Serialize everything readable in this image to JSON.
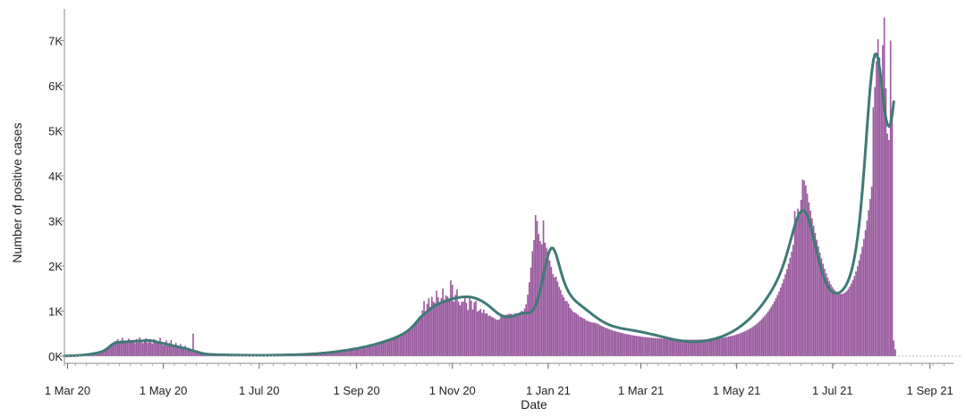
{
  "chart_data": {
    "type": "bar",
    "xlabel": "Date",
    "ylabel": "Number of positive cases",
    "xlim": [
      "2020-02-28",
      "2021-09-16"
    ],
    "ylim": [
      0,
      7700
    ],
    "grid": false,
    "x_ticks": [
      {
        "date": "2020-03-01",
        "label": "1 Mar 20"
      },
      {
        "date": "2020-05-01",
        "label": "1 May 20"
      },
      {
        "date": "2020-07-01",
        "label": "1 Jul 20"
      },
      {
        "date": "2020-09-01",
        "label": "1 Sep 20"
      },
      {
        "date": "2020-11-01",
        "label": "1 Nov 20"
      },
      {
        "date": "2021-01-01",
        "label": "1 Jan 21"
      },
      {
        "date": "2021-03-01",
        "label": "1 Mar 21"
      },
      {
        "date": "2021-05-01",
        "label": "1 May 21"
      },
      {
        "date": "2021-07-01",
        "label": "1 Jul 21"
      },
      {
        "date": "2021-09-01",
        "label": "1 Sep 21"
      }
    ],
    "y_ticks": [
      {
        "value": 0,
        "label": "0K"
      },
      {
        "value": 1000,
        "label": "1K"
      },
      {
        "value": 2000,
        "label": "2K"
      },
      {
        "value": 3000,
        "label": "3K"
      },
      {
        "value": 4000,
        "label": "4K"
      },
      {
        "value": 5000,
        "label": "5K"
      },
      {
        "value": 6000,
        "label": "6K"
      },
      {
        "value": 7000,
        "label": "7K"
      }
    ],
    "daily_cases": {
      "start_date": "2020-02-28",
      "values": [
        5,
        6,
        7,
        8,
        9,
        10,
        12,
        14,
        16,
        18,
        20,
        23,
        26,
        30,
        34,
        38,
        43,
        48,
        54,
        60,
        67,
        74,
        82,
        90,
        105,
        120,
        140,
        160,
        190,
        220,
        260,
        300,
        330,
        340,
        380,
        290,
        350,
        410,
        300,
        330,
        330,
        390,
        300,
        340,
        350,
        290,
        380,
        300,
        420,
        360,
        290,
        320,
        400,
        300,
        350,
        310,
        280,
        380,
        360,
        290,
        340,
        410,
        300,
        240,
        310,
        350,
        270,
        290,
        360,
        230,
        240,
        300,
        230,
        200,
        270,
        210,
        170,
        230,
        180,
        190,
        150,
        140,
        500,
        130,
        110,
        90,
        60,
        80,
        70,
        40,
        55,
        45,
        40,
        42,
        38,
        36,
        34,
        33,
        32,
        31,
        30,
        30,
        29,
        28,
        28,
        27,
        26,
        26,
        25,
        25,
        24,
        24,
        23,
        23,
        22,
        22,
        22,
        21,
        21,
        21,
        20,
        20,
        20,
        20,
        20,
        20,
        20,
        21,
        21,
        21,
        22,
        22,
        22,
        23,
        23,
        24,
        24,
        25,
        26,
        26,
        27,
        28,
        29,
        30,
        30,
        31,
        32,
        33,
        34,
        35,
        36,
        38,
        40,
        41,
        43,
        45,
        47,
        49,
        51,
        53,
        55,
        58,
        61,
        63,
        66,
        69,
        72,
        76,
        79,
        83,
        87,
        91,
        95,
        100,
        105,
        110,
        115,
        120,
        125,
        130,
        135,
        140,
        146,
        152,
        158,
        164,
        170,
        177,
        184,
        191,
        198,
        206,
        214,
        222,
        230,
        239,
        248,
        257,
        266,
        276,
        286,
        296,
        307,
        318,
        329,
        340,
        352,
        364,
        376,
        389,
        403,
        417,
        432,
        448,
        465,
        483,
        502,
        524,
        548,
        575,
        604,
        636,
        671,
        709,
        750,
        794,
        837,
        870,
        1017,
        1222,
        994,
        1159,
        1287,
        1097,
        1317,
        1212,
        1178,
        1453,
        1303,
        1148,
        1288,
        1498,
        1253,
        1349,
        1320,
        1250,
        1678,
        1585,
        1209,
        1360,
        1482,
        1208,
        1128,
        1207,
        1213,
        1302,
        1183,
        1023,
        1289,
        1232,
        1037,
        1192,
        1230,
        991,
        1013,
        1047,
        963,
        1034,
        944,
        950,
        897,
        902,
        873,
        858,
        837,
        814,
        800,
        822,
        884,
        873,
        904,
        917,
        921,
        940,
        943,
        930,
        910,
        950,
        944,
        953,
        954,
        1004,
        992,
        1059,
        1153,
        1364,
        1640,
        1964,
        2327,
        2573,
        3128,
        2997,
        2707,
        2549,
        2483,
        3013,
        2519,
        2405,
        2319,
        2122,
        1981,
        1825,
        1748,
        1769,
        1654,
        1537,
        1468,
        1362,
        1305,
        1225,
        1220,
        1162,
        1069,
        1031,
        983,
        969,
        946,
        918,
        880,
        867,
        847,
        831,
        799,
        783,
        768,
        759,
        749,
        744,
        740,
        724,
        712,
        689,
        672,
        653,
        638,
        624,
        611,
        596,
        585,
        573,
        561,
        551,
        541,
        532,
        523,
        514,
        506,
        498,
        490,
        483,
        476,
        469,
        463,
        457,
        451,
        446,
        441,
        436,
        431,
        427,
        423,
        419,
        415,
        412,
        408,
        405,
        402,
        399,
        396,
        394,
        391,
        389,
        387,
        385,
        383,
        381,
        379,
        377,
        375,
        374,
        372,
        371,
        370,
        369,
        368,
        367,
        366,
        366,
        365,
        365,
        365,
        365,
        366,
        366,
        367,
        368,
        369,
        370,
        372,
        374,
        376,
        378,
        381,
        384,
        387,
        391,
        395,
        399,
        404,
        409,
        415,
        421,
        428,
        435,
        443,
        452,
        461,
        471,
        482,
        493,
        506,
        519,
        534,
        549,
        566,
        584,
        603,
        624,
        646,
        670,
        696,
        724,
        754,
        786,
        821,
        859,
        899,
        943,
        990,
        1041,
        1095,
        1154,
        1217,
        1285,
        1358,
        1437,
        1522,
        1613,
        1711,
        1816,
        1929,
        2050,
        2180,
        2319,
        2468,
        3218,
        3062,
        3272,
        3116,
        3467,
        3917,
        3896,
        3783,
        3606,
        3410,
        3229,
        3058,
        2893,
        2734,
        2582,
        2437,
        2300,
        2171,
        2051,
        1940,
        1838,
        1746,
        1664,
        1592,
        1531,
        1480,
        1440,
        1409,
        1389,
        1379,
        1380,
        1392,
        1414,
        1447,
        1491,
        1546,
        1612,
        1690,
        1779,
        1881,
        1996,
        2125,
        2268,
        2427,
        2602,
        2795,
        3006,
        3236,
        3487,
        3760,
        5518,
        5969,
        6544,
        7032,
        6621,
        6011,
        6895,
        7511,
        5938,
        4935,
        4792,
        6999,
        5273,
        350,
        150
      ],
      "color": "#995a9e"
    },
    "rolling_average": {
      "start_date": "2020-02-28",
      "values": [
        5,
        6,
        7,
        8,
        9,
        10,
        11,
        13,
        15,
        17,
        20,
        23,
        26,
        30,
        34,
        38,
        43,
        48,
        54,
        60,
        67,
        74,
        82,
        90,
        105,
        120,
        140,
        160,
        190,
        220,
        250,
        270,
        285,
        295,
        305,
        310,
        313,
        315,
        317,
        320,
        322,
        324,
        326,
        328,
        330,
        332,
        334,
        336,
        338,
        340,
        342,
        344,
        346,
        348,
        350,
        346,
        338,
        330,
        322,
        314,
        306,
        298,
        290,
        282,
        274,
        266,
        258,
        250,
        242,
        234,
        226,
        218,
        210,
        202,
        194,
        186,
        178,
        170,
        160,
        150,
        140,
        130,
        120,
        110,
        100,
        90,
        80,
        70,
        60,
        55,
        50,
        45,
        42,
        40,
        38,
        36,
        34,
        33,
        32,
        31,
        30,
        30,
        29,
        28,
        28,
        27,
        26,
        26,
        25,
        25,
        24,
        24,
        23,
        23,
        22,
        22,
        22,
        21,
        21,
        21,
        20,
        20,
        20,
        20,
        20,
        20,
        20,
        21,
        21,
        21,
        22,
        22,
        22,
        23,
        23,
        24,
        24,
        25,
        26,
        26,
        27,
        28,
        29,
        30,
        30,
        31,
        32,
        33,
        34,
        35,
        36,
        38,
        40,
        41,
        43,
        45,
        47,
        49,
        51,
        53,
        55,
        58,
        61,
        63,
        66,
        69,
        72,
        76,
        79,
        83,
        87,
        91,
        95,
        100,
        105,
        110,
        115,
        120,
        125,
        130,
        135,
        140,
        146,
        152,
        158,
        164,
        170,
        177,
        184,
        191,
        198,
        206,
        214,
        222,
        230,
        239,
        248,
        257,
        266,
        276,
        286,
        296,
        307,
        318,
        329,
        340,
        352,
        364,
        376,
        389,
        403,
        417,
        432,
        448,
        465,
        483,
        502,
        524,
        548,
        575,
        604,
        636,
        671,
        709,
        750,
        794,
        837,
        872,
        904,
        933,
        961,
        990,
        1017,
        1045,
        1072,
        1097,
        1119,
        1139,
        1156,
        1172,
        1187,
        1201,
        1215,
        1228,
        1240,
        1251,
        1262,
        1272,
        1281,
        1289,
        1296,
        1302,
        1307,
        1311,
        1314,
        1316,
        1317,
        1316,
        1313,
        1308,
        1301,
        1292,
        1281,
        1268,
        1253,
        1236,
        1217,
        1196,
        1173,
        1148,
        1121,
        1093,
        1064,
        1034,
        1004,
        975,
        949,
        926,
        907,
        892,
        882,
        876,
        873,
        873,
        877,
        884,
        893,
        904,
        917,
        929,
        940,
        948,
        952,
        954,
        954,
        954,
        962,
        980,
        1011,
        1060,
        1130,
        1224,
        1341,
        1479,
        1634,
        1800,
        1967,
        2122,
        2253,
        2348,
        2398,
        2397,
        2346,
        2256,
        2141,
        2014,
        1887,
        1768,
        1662,
        1570,
        1490,
        1423,
        1366,
        1317,
        1275,
        1238,
        1205,
        1175,
        1147,
        1120,
        1093,
        1066,
        1039,
        1011,
        983,
        956,
        929,
        902,
        876,
        851,
        827,
        804,
        782,
        762,
        743,
        725,
        709,
        694,
        680,
        668,
        657,
        647,
        638,
        630,
        622,
        615,
        609,
        602,
        596,
        590,
        584,
        578,
        572,
        566,
        559,
        553,
        546,
        539,
        532,
        525,
        517,
        510,
        502,
        494,
        486,
        478,
        470,
        461,
        453,
        444,
        436,
        427,
        419,
        410,
        402,
        394,
        386,
        378,
        371,
        364,
        357,
        351,
        345,
        340,
        335,
        331,
        328,
        325,
        323,
        322,
        321,
        321,
        322,
        324,
        326,
        329,
        333,
        337,
        342,
        348,
        354,
        361,
        369,
        377,
        386,
        396,
        407,
        418,
        430,
        443,
        457,
        472,
        488,
        504,
        522,
        541,
        561,
        582,
        604,
        627,
        652,
        677,
        704,
        732,
        762,
        792,
        824,
        858,
        893,
        929,
        967,
        1006,
        1047,
        1090,
        1135,
        1181,
        1229,
        1279,
        1331,
        1386,
        1443,
        1503,
        1566,
        1633,
        1705,
        1782,
        1866,
        1957,
        2056,
        2163,
        2278,
        2400,
        2527,
        2655,
        2780,
        2898,
        3005,
        3096,
        3167,
        3213,
        3232,
        3222,
        3182,
        3112,
        3016,
        2897,
        2762,
        2616,
        2466,
        2316,
        2171,
        2035,
        1910,
        1798,
        1700,
        1617,
        1549,
        1495,
        1454,
        1424,
        1405,
        1396,
        1396,
        1405,
        1423,
        1451,
        1489,
        1538,
        1600,
        1676,
        1770,
        1885,
        2025,
        2195,
        2400,
        2646,
        2938,
        3280,
        3672,
        4109,
        4580,
        5065,
        5537,
        5963,
        6312,
        6561,
        6693,
        6703,
        6594,
        6382,
        6100,
        5791,
        5500,
        5270,
        5130,
        5092,
        5166,
        5353,
        5647
      ],
      "color": "#3f7a76"
    }
  }
}
